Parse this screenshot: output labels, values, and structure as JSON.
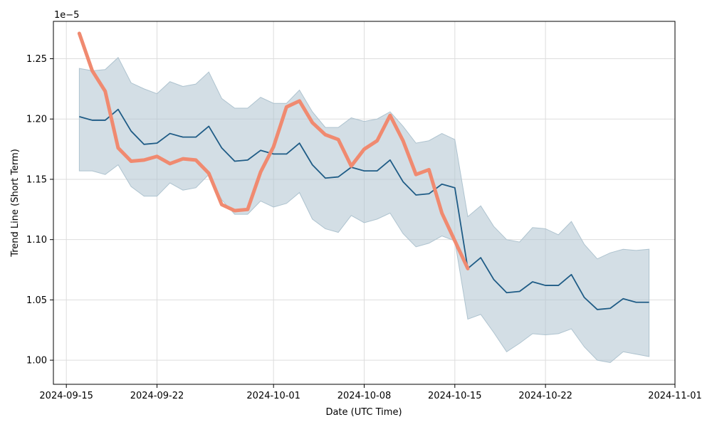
{
  "chart_data": {
    "type": "line",
    "title": "",
    "xlabel": "Date (UTC Time)",
    "ylabel": "Trend Line (Short Term)",
    "y_offset_label": "1e−5",
    "y_scale_exponent": -5,
    "grid": true,
    "legend": "none",
    "xlim": [
      "2024-09-14",
      "2024-11-01"
    ],
    "ylim": [
      9.8e-06,
      1.281e-05
    ],
    "x_ticks": [
      "2024-09-15",
      "2024-09-22",
      "2024-10-01",
      "2024-10-08",
      "2024-10-15",
      "2024-10-22",
      "2024-11-01"
    ],
    "y_ticks": [
      "1.00",
      "1.05",
      "1.10",
      "1.15",
      "1.20",
      "1.25"
    ],
    "y_tick_values": [
      1e-05,
      1.05e-05,
      1.1e-05,
      1.15e-05,
      1.2e-05,
      1.25e-05
    ],
    "colors": {
      "band": "#aec3cf",
      "center_line": "#1f5c86",
      "trend_line": "#f08a70",
      "grid": "#dddddd",
      "axis": "#000000"
    },
    "x": [
      "2024-09-16",
      "2024-09-17",
      "2024-09-18",
      "2024-09-19",
      "2024-09-20",
      "2024-09-21",
      "2024-09-22",
      "2024-09-23",
      "2024-09-24",
      "2024-09-25",
      "2024-09-26",
      "2024-09-27",
      "2024-09-28",
      "2024-09-29",
      "2024-09-30",
      "2024-10-01",
      "2024-10-02",
      "2024-10-03",
      "2024-10-04",
      "2024-10-05",
      "2024-10-06",
      "2024-10-07",
      "2024-10-08",
      "2024-10-09",
      "2024-10-10",
      "2024-10-11",
      "2024-10-12",
      "2024-10-13",
      "2024-10-14",
      "2024-10-15",
      "2024-10-16",
      "2024-10-17",
      "2024-10-18",
      "2024-10-19",
      "2024-10-20",
      "2024-10-21",
      "2024-10-22",
      "2024-10-23",
      "2024-10-24",
      "2024-10-25",
      "2024-10-26",
      "2024-10-27",
      "2024-10-28",
      "2024-10-29",
      "2024-10-30"
    ],
    "series": [
      {
        "role": "band",
        "upper": [
          1.242e-05,
          1.24e-05,
          1.241e-05,
          1.251e-05,
          1.23e-05,
          1.225e-05,
          1.221e-05,
          1.231e-05,
          1.227e-05,
          1.229e-05,
          1.239e-05,
          1.217e-05,
          1.209e-05,
          1.209e-05,
          1.218e-05,
          1.213e-05,
          1.213e-05,
          1.224e-05,
          1.206e-05,
          1.193e-05,
          1.193e-05,
          1.201e-05,
          1.198e-05,
          1.2e-05,
          1.206e-05,
          1.194e-05,
          1.18e-05,
          1.182e-05,
          1.188e-05,
          1.183e-05,
          1.119e-05,
          1.128e-05,
          1.111e-05,
          1.1e-05,
          1.098e-05,
          1.11e-05,
          1.109e-05,
          1.104e-05,
          1.115e-05,
          1.096e-05,
          1.084e-05,
          1.089e-05,
          1.092e-05,
          1.091e-05,
          1.092e-05
        ],
        "lower": [
          1.157e-05,
          1.157e-05,
          1.154e-05,
          1.162e-05,
          1.144e-05,
          1.136e-05,
          1.136e-05,
          1.147e-05,
          1.141e-05,
          1.143e-05,
          1.154e-05,
          1.133e-05,
          1.121e-05,
          1.121e-05,
          1.132e-05,
          1.127e-05,
          1.13e-05,
          1.139e-05,
          1.117e-05,
          1.109e-05,
          1.106e-05,
          1.12e-05,
          1.114e-05,
          1.117e-05,
          1.122e-05,
          1.105e-05,
          1.094e-05,
          1.097e-05,
          1.103e-05,
          1.099e-05,
          1.034e-05,
          1.038e-05,
          1.023e-05,
          1.007e-05,
          1.014e-05,
          1.022e-05,
          1.021e-05,
          1.022e-05,
          1.026e-05,
          1.011e-05,
          1e-05,
          9.98e-06,
          1.007e-05,
          1.005e-05,
          1.003e-05
        ]
      },
      {
        "role": "center_line",
        "values": [
          1.202e-05,
          1.199e-05,
          1.199e-05,
          1.208e-05,
          1.19e-05,
          1.179e-05,
          1.18e-05,
          1.188e-05,
          1.185e-05,
          1.185e-05,
          1.194e-05,
          1.176e-05,
          1.165e-05,
          1.166e-05,
          1.174e-05,
          1.171e-05,
          1.171e-05,
          1.18e-05,
          1.162e-05,
          1.151e-05,
          1.152e-05,
          1.16e-05,
          1.157e-05,
          1.157e-05,
          1.166e-05,
          1.148e-05,
          1.137e-05,
          1.138e-05,
          1.146e-05,
          1.143e-05,
          1.076e-05,
          1.085e-05,
          1.067e-05,
          1.056e-05,
          1.057e-05,
          1.065e-05,
          1.062e-05,
          1.062e-05,
          1.071e-05,
          1.052e-05,
          1.042e-05,
          1.043e-05,
          1.051e-05,
          1.048e-05,
          1.048e-05
        ]
      },
      {
        "role": "trend_line",
        "x": [
          "2024-09-16",
          "2024-09-17",
          "2024-09-18",
          "2024-09-19",
          "2024-09-20",
          "2024-09-21",
          "2024-09-22",
          "2024-09-23",
          "2024-09-24",
          "2024-09-25",
          "2024-09-26",
          "2024-09-27",
          "2024-09-28",
          "2024-09-29",
          "2024-09-30",
          "2024-10-01",
          "2024-10-02",
          "2024-10-03",
          "2024-10-04",
          "2024-10-05",
          "2024-10-06",
          "2024-10-07",
          "2024-10-08",
          "2024-10-09",
          "2024-10-10",
          "2024-10-11",
          "2024-10-12",
          "2024-10-13",
          "2024-10-14",
          "2024-10-15",
          "2024-10-16"
        ],
        "values": [
          1.271e-05,
          1.24e-05,
          1.223e-05,
          1.176e-05,
          1.165e-05,
          1.166e-05,
          1.169e-05,
          1.163e-05,
          1.167e-05,
          1.166e-05,
          1.155e-05,
          1.129e-05,
          1.124e-05,
          1.125e-05,
          1.156e-05,
          1.177e-05,
          1.21e-05,
          1.215e-05,
          1.197e-05,
          1.187e-05,
          1.183e-05,
          1.161e-05,
          1.175e-05,
          1.182e-05,
          1.203e-05,
          1.182e-05,
          1.154e-05,
          1.158e-05,
          1.122e-05,
          1.099e-05,
          1.076e-05
        ]
      }
    ]
  }
}
